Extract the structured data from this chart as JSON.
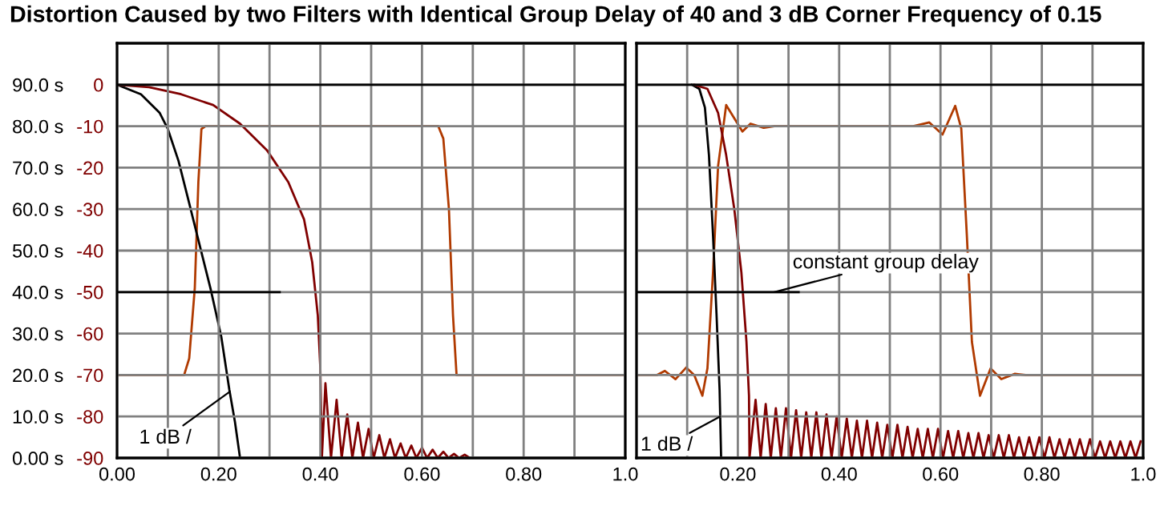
{
  "chart_data": [
    {
      "type": "line",
      "title": "Distortion Caused by two Filters with Identical Group Delay of 40 and 3 dB Corner Frequency of 0.15",
      "xlim": [
        0,
        1.0
      ],
      "xticks": [
        {
          "value": 0,
          "label": "0.00"
        },
        {
          "value": 0.1,
          "label": null
        },
        {
          "value": 0.2,
          "label": "0.20"
        },
        {
          "value": 0.3,
          "label": null
        },
        {
          "value": 0.4,
          "label": "0.40"
        },
        {
          "value": 0.5,
          "label": null
        },
        {
          "value": 0.6,
          "label": "0.60"
        },
        {
          "value": 0.7,
          "label": null
        },
        {
          "value": 0.8,
          "label": "0.80"
        },
        {
          "value": 0.9,
          "label": null
        },
        {
          "value": 1.0,
          "label": "1.0"
        }
      ],
      "ylim": [
        0,
        100
      ],
      "yticks": [
        {
          "value": 0,
          "label": "0.00 s"
        },
        {
          "value": 10,
          "label": "10.0 s"
        },
        {
          "value": 20,
          "label": "20.0 s"
        },
        {
          "value": 30,
          "label": "30.0 s"
        },
        {
          "value": 40,
          "label": "40.0 s"
        },
        {
          "value": 50,
          "label": "50.0 s"
        },
        {
          "value": 60,
          "label": "60.0 s"
        },
        {
          "value": 70,
          "label": "70.0 s"
        },
        {
          "value": 80,
          "label": "80.0 s"
        },
        {
          "value": 90,
          "label": "90.0 s"
        }
      ],
      "y2lim": [
        -90,
        10
      ],
      "y2ticks": [
        -90,
        -80,
        -70,
        -60,
        -50,
        -40,
        -30,
        -20,
        -10,
        0
      ],
      "grid": true,
      "ref_lines": [
        {
          "axis": "y",
          "value": 90,
          "color": "#000000"
        }
      ],
      "series": [
        {
          "color": "#000000",
          "axis": "y",
          "x": [
            0,
            0.32
          ],
          "values": [
            40,
            40
          ]
        },
        {
          "color": "#b03a00",
          "axis": "y2",
          "x": [
            0,
            0.132,
            0.142,
            0.153,
            0.16,
            0.166,
            0.174,
            0.632,
            0.642,
            0.653,
            0.661,
            0.668,
            1.0
          ],
          "values": [
            -70,
            -70,
            -66,
            -49,
            -23.5,
            -10.7,
            -10,
            -10,
            -13,
            -30,
            -55.6,
            -70,
            -70
          ]
        },
        {
          "color": "#000000",
          "axis": "y2",
          "x": [
            0,
            0.047,
            0.084,
            0.1,
            0.121,
            0.142,
            0.163,
            0.184,
            0.205,
            0.221,
            0.232,
            0.242
          ],
          "values": [
            0,
            -2.3,
            -6.8,
            -10.7,
            -18.4,
            -28.6,
            -38.9,
            -49.2,
            -60.7,
            -73.6,
            -81.3,
            -90
          ]
        },
        {
          "color": "#800000",
          "axis": "y2",
          "x": [
            0,
            0.063,
            0.126,
            0.189,
            0.242,
            0.295,
            0.337,
            0.368,
            0.384,
            0.395,
            0.4,
            0.403,
            0.41,
            0.421,
            0.432,
            0.442,
            0.453,
            0.463,
            0.474,
            0.484,
            0.495,
            0.505,
            0.516,
            0.526,
            0.537,
            0.547,
            0.558,
            0.568,
            0.579,
            0.589,
            0.6,
            0.61,
            0.621,
            0.631,
            0.642,
            0.652,
            0.663,
            0.673,
            0.684,
            0.694
          ],
          "values": [
            0,
            -0.6,
            -2.3,
            -4.9,
            -9.4,
            -15.8,
            -23.5,
            -32.5,
            -42.8,
            -55.6,
            -68.4,
            -90,
            -72,
            -90,
            -76,
            -90,
            -79.5,
            -90,
            -81.5,
            -90,
            -83,
            -90,
            -84.5,
            -90,
            -85.5,
            -90,
            -86.5,
            -90,
            -87,
            -90,
            -87.5,
            -90,
            -88,
            -90,
            -88.5,
            -90,
            -89,
            -90,
            -89.2,
            -90
          ]
        }
      ],
      "annotations": [
        {
          "text": "1 dB /",
          "x": 0.222,
          "y": 16
        }
      ]
    },
    {
      "type": "line",
      "xlim": [
        0,
        1.0
      ],
      "xticks": [
        {
          "value": 0.1,
          "label": null
        },
        {
          "value": 0.2,
          "label": "0.20"
        },
        {
          "value": 0.3,
          "label": null
        },
        {
          "value": 0.4,
          "label": "0.40"
        },
        {
          "value": 0.5,
          "label": null
        },
        {
          "value": 0.6,
          "label": "0.60"
        },
        {
          "value": 0.7,
          "label": null
        },
        {
          "value": 0.8,
          "label": "0.80"
        },
        {
          "value": 0.9,
          "label": null
        },
        {
          "value": 1.0,
          "label": "1.0"
        }
      ],
      "ylim": [
        0,
        100
      ],
      "yticks": [
        0,
        10,
        20,
        30,
        40,
        50,
        60,
        70,
        80,
        90
      ],
      "y2lim": [
        -90,
        10
      ],
      "y2ticks": [
        -90,
        -80,
        -70,
        -60,
        -50,
        -40,
        -30,
        -20,
        -10,
        0
      ],
      "tick_labels": "x",
      "grid": true,
      "ref_lines": [
        {
          "axis": "y",
          "value": 90,
          "color": "#000000"
        }
      ],
      "series": [
        {
          "color": "#000000",
          "axis": "y",
          "x": [
            0,
            0.32
          ],
          "values": [
            40,
            40
          ]
        },
        {
          "color": "#b03a00",
          "axis": "y2",
          "x": [
            0,
            0.04,
            0.056,
            0.077,
            0.098,
            0.114,
            0.13,
            0.14,
            0.151,
            0.161,
            0.177,
            0.193,
            0.209,
            0.225,
            0.251,
            0.272,
            0.546,
            0.578,
            0.604,
            0.629,
            0.641,
            0.652,
            0.662,
            0.678,
            0.699,
            0.72,
            0.747,
            0.768,
            1.0
          ],
          "values": [
            -70,
            -70,
            -69,
            -71,
            -68.2,
            -70,
            -75,
            -68.4,
            -45.3,
            -19.6,
            -4.9,
            -8.1,
            -11.3,
            -9.4,
            -10.4,
            -10,
            -10,
            -9.1,
            -12,
            -5.1,
            -10.6,
            -36.3,
            -62,
            -75,
            -68.4,
            -71,
            -69.7,
            -70,
            -70
          ]
        },
        {
          "color": "#000000",
          "axis": "y2",
          "x": [
            0.109,
            0.124,
            0.135,
            0.143,
            0.151,
            0.158,
            0.164,
            0.167
          ],
          "values": [
            0,
            -1,
            -5.5,
            -17,
            -36.3,
            -55.6,
            -73.6,
            -90
          ]
        },
        {
          "color": "#800000",
          "axis": "y2",
          "x": [
            0.114,
            0.14,
            0.161,
            0.177,
            0.193,
            0.207,
            0.217,
            0.222,
            0.223,
            0.235,
            0.245,
            0.255,
            0.265,
            0.275,
            0.285,
            0.295,
            0.305,
            0.315,
            0.325,
            0.335,
            0.345,
            0.355,
            0.365,
            0.375,
            0.385,
            0.395,
            0.405,
            0.415,
            0.425,
            0.435,
            0.445,
            0.455,
            0.465,
            0.475,
            0.485,
            0.495,
            0.505,
            0.515,
            0.525,
            0.535,
            0.545,
            0.555,
            0.565,
            0.575,
            0.585,
            0.595,
            0.605,
            0.615,
            0.625,
            0.635,
            0.645,
            0.655,
            0.665,
            0.675,
            0.685,
            0.695,
            0.705,
            0.715,
            0.725,
            0.735,
            0.745,
            0.755,
            0.765,
            0.775,
            0.785,
            0.795,
            0.805,
            0.815,
            0.825,
            0.835,
            0.845,
            0.855,
            0.865,
            0.875,
            0.885,
            0.895,
            0.905,
            0.915,
            0.925,
            0.935,
            0.945,
            0.955,
            0.965,
            0.975,
            0.985,
            0.995
          ],
          "values": [
            0,
            -1,
            -6.8,
            -17,
            -30,
            -45.3,
            -62,
            -75,
            -90,
            -76,
            -90,
            -77,
            -90,
            -78,
            -90,
            -78,
            -90,
            -78.5,
            -90,
            -79,
            -90,
            -79,
            -90,
            -79.5,
            -90,
            -80,
            -90,
            -80.5,
            -90,
            -81,
            -90,
            -81,
            -90,
            -81.5,
            -90,
            -82,
            -90,
            -82,
            -90,
            -82.5,
            -90,
            -83,
            -90,
            -83,
            -90,
            -83,
            -90,
            -83.5,
            -90,
            -83.5,
            -90,
            -84,
            -90,
            -84,
            -90,
            -84.5,
            -90,
            -84.5,
            -90,
            -84.5,
            -90,
            -85,
            -90,
            -85,
            -90,
            -85,
            -90,
            -85,
            -90,
            -85.5,
            -90,
            -85.5,
            -90,
            -85.5,
            -90,
            -85.5,
            -90,
            -86,
            -90,
            -86,
            -90,
            -86,
            -90,
            -86,
            -90,
            -86
          ]
        }
      ],
      "annotations": [
        {
          "text": "constant group delay",
          "x": 0.272,
          "y": 40
        },
        {
          "text": "1 dB /",
          "x": 0.165,
          "y": 10
        }
      ]
    }
  ]
}
